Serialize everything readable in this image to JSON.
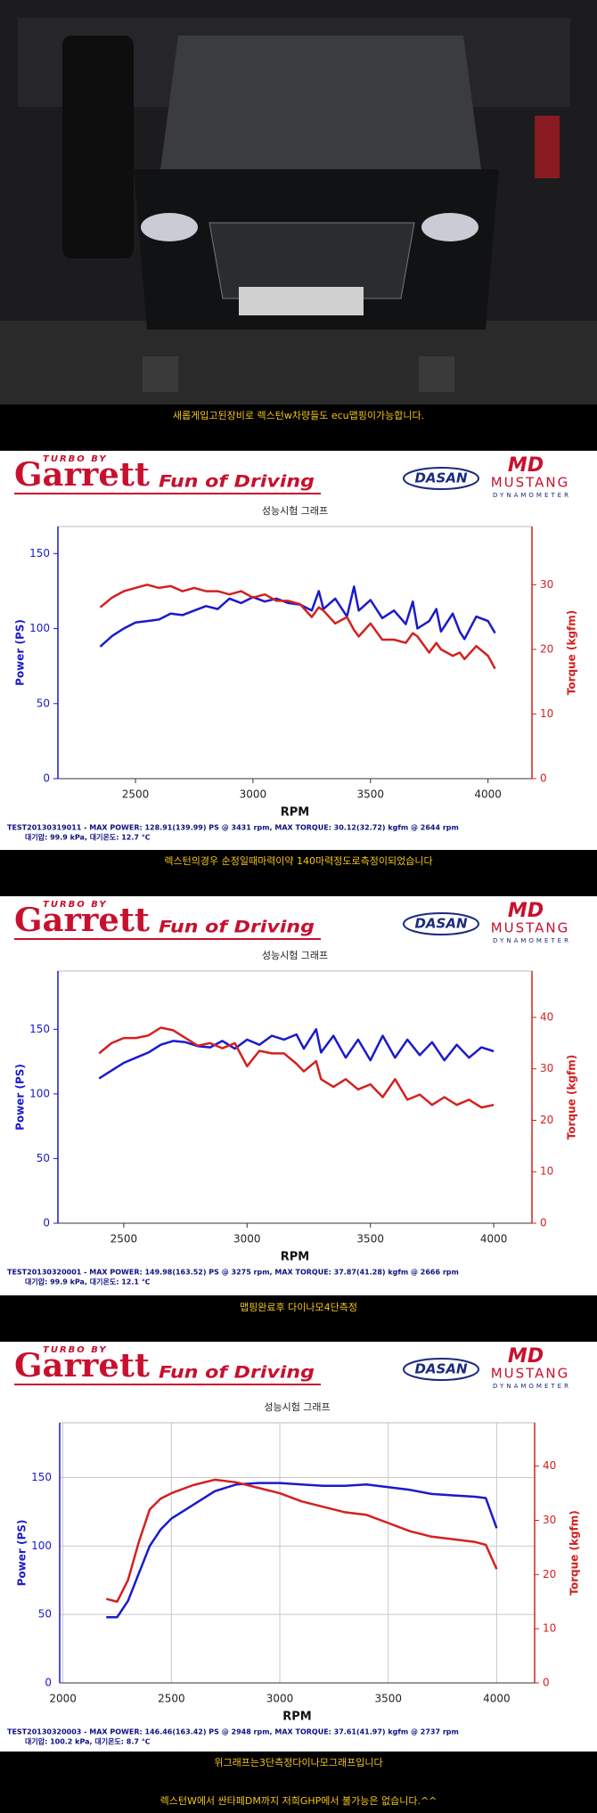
{
  "captions": [
    "새롭게입고된장비로 렉스턴w차량들도 ecu맵핑이가능합니다.",
    "렉스턴의경우 순정일때마력이약 140마력정도로측정이되었습니다",
    "맵핑완료후 다이나모4단측정",
    "위그래프는3단측정다이나모그래프입니다",
    "렉스턴W에서 싼타페DM까지 저희GHP에서 불가능은 없습니다.^^"
  ],
  "banner": {
    "turbo_by": "TURBO BY",
    "garrett": "Garrett",
    "slogan": "Fun of Driving",
    "dasan": "DASAN",
    "md": "MD",
    "mustang": "MUSTANG",
    "dynamometer": "DYNAMOMETER"
  },
  "chart_data": [
    {
      "type": "line",
      "title": "성능시험 그래프",
      "x_label": "RPM",
      "grid": false,
      "xlim": [
        2170,
        4187
      ],
      "xticks": [
        2500,
        3000,
        3500,
        4000
      ],
      "ylim": [
        0,
        168
      ],
      "yticks": [
        0,
        50,
        100,
        150
      ],
      "y2lim": [
        0,
        39
      ],
      "y2ticks": [
        0,
        10,
        20,
        30
      ],
      "x": [
        2350,
        2400,
        2450,
        2500,
        2550,
        2600,
        2650,
        2700,
        2750,
        2800,
        2850,
        2900,
        2950,
        3000,
        3050,
        3100,
        3150,
        3200,
        3250,
        3280,
        3300,
        3350,
        3400,
        3430,
        3450,
        3500,
        3550,
        3600,
        3650,
        3680,
        3700,
        3750,
        3780,
        3800,
        3850,
        3880,
        3900,
        3950,
        4000,
        4030
      ],
      "series": [
        {
          "name": "Power (PS)",
          "color": "#1a1acc",
          "values": [
            88,
            95,
            100,
            104,
            105,
            106,
            110,
            109,
            112,
            115,
            113,
            120,
            117,
            121,
            118,
            120,
            117,
            116,
            112,
            125,
            113,
            120,
            108,
            128,
            112,
            119,
            107,
            112,
            103,
            118,
            100,
            105,
            113,
            98,
            110,
            98,
            93,
            108,
            105,
            97
          ]
        },
        {
          "name": "Torque (kgfm)",
          "color": "#d42020",
          "axis": "y2",
          "values": [
            26.5,
            28,
            29,
            29.5,
            30,
            29.5,
            29.8,
            29,
            29.5,
            29,
            29,
            28.5,
            29,
            28,
            28.5,
            27.5,
            27.5,
            27,
            25,
            26.5,
            26,
            24,
            25,
            23,
            22,
            24,
            21.5,
            21.5,
            21,
            22.5,
            22,
            19.5,
            21,
            20,
            19,
            19.5,
            18.5,
            20.5,
            19,
            17
          ]
        }
      ],
      "footnote": [
        "TEST20130319011 - MAX POWER: 128.91(139.99) PS @ 3431 rpm, MAX TORQUE: 30.12(32.72) kgfm @ 2644 rpm",
        "대기압: 99.9 kPa, 대기온도: 12.7 ℃"
      ]
    },
    {
      "type": "line",
      "title": "성능시험 그래프",
      "x_label": "RPM",
      "grid": false,
      "xlim": [
        2233,
        4155
      ],
      "xticks": [
        2500,
        3000,
        3500,
        4000
      ],
      "ylim": [
        0,
        195
      ],
      "yticks": [
        0,
        50,
        100,
        150
      ],
      "y2lim": [
        0,
        49
      ],
      "y2ticks": [
        0,
        10,
        20,
        30,
        40
      ],
      "x": [
        2400,
        2450,
        2500,
        2550,
        2600,
        2650,
        2700,
        2750,
        2800,
        2850,
        2900,
        2950,
        3000,
        3050,
        3100,
        3150,
        3200,
        3230,
        3280,
        3300,
        3350,
        3400,
        3450,
        3500,
        3550,
        3600,
        3650,
        3700,
        3750,
        3800,
        3850,
        3900,
        3950,
        4000
      ],
      "series": [
        {
          "name": "Power (PS)",
          "color": "#1a1acc",
          "values": [
            112,
            118,
            124,
            128,
            132,
            138,
            141,
            140,
            137,
            136,
            141,
            135,
            142,
            138,
            145,
            142,
            146,
            135,
            150,
            132,
            145,
            128,
            142,
            126,
            145,
            128,
            142,
            130,
            140,
            126,
            138,
            128,
            136,
            133
          ]
        },
        {
          "name": "Torque (kgfm)",
          "color": "#d42020",
          "axis": "y2",
          "values": [
            33,
            35,
            36,
            36,
            36.5,
            38,
            37.5,
            36,
            34.5,
            35,
            34,
            35,
            30.5,
            33.5,
            33,
            33,
            31,
            29.5,
            31.5,
            28,
            26.5,
            28,
            26,
            27,
            24.5,
            28,
            24,
            25,
            23,
            24.5,
            23,
            24,
            22.5,
            23
          ]
        }
      ],
      "footnote": [
        "TEST20130320001 - MAX POWER: 149.98(163.52) PS @ 3275 rpm, MAX TORQUE: 37.87(41.28) kgfm @ 2666 rpm",
        "대기압: 99.9 kPa, 대기온도: 12.1 ℃"
      ]
    },
    {
      "type": "line",
      "title": "성능시험 그래프",
      "x_label": "RPM",
      "grid": true,
      "xlim": [
        1985,
        4175
      ],
      "xticks": [
        2000,
        2500,
        3000,
        3500,
        4000
      ],
      "ylim": [
        0,
        190
      ],
      "yticks": [
        0,
        50,
        100,
        150
      ],
      "y2lim": [
        0,
        48
      ],
      "y2ticks": [
        0,
        10,
        20,
        30,
        40
      ],
      "x": [
        2200,
        2250,
        2300,
        2350,
        2400,
        2450,
        2500,
        2600,
        2700,
        2800,
        2900,
        3000,
        3100,
        3200,
        3300,
        3400,
        3500,
        3600,
        3700,
        3800,
        3900,
        3950,
        4000
      ],
      "series": [
        {
          "name": "Power (PS)",
          "color": "#1a1acc",
          "values": [
            48,
            48,
            60,
            80,
            100,
            112,
            120,
            130,
            140,
            145,
            146,
            146,
            145,
            144,
            144,
            145,
            143,
            141,
            138,
            137,
            136,
            135,
            113
          ]
        },
        {
          "name": "Torque (kgfm)",
          "color": "#d42020",
          "axis": "y2",
          "values": [
            15.5,
            15,
            19,
            26,
            32,
            34,
            35,
            36.5,
            37.5,
            37,
            36,
            35,
            33.5,
            32.5,
            31.5,
            31,
            29.5,
            28,
            27,
            26.5,
            26,
            25.5,
            21
          ]
        }
      ],
      "footnote": [
        "TEST20130320003 - MAX POWER: 146.46(163.42) PS @ 2948 rpm, MAX TORQUE: 37.61(41.97) kgfm @ 2737 rpm",
        "대기압: 100.2 kPa, 대기온도: 8.7 ℃"
      ]
    }
  ]
}
